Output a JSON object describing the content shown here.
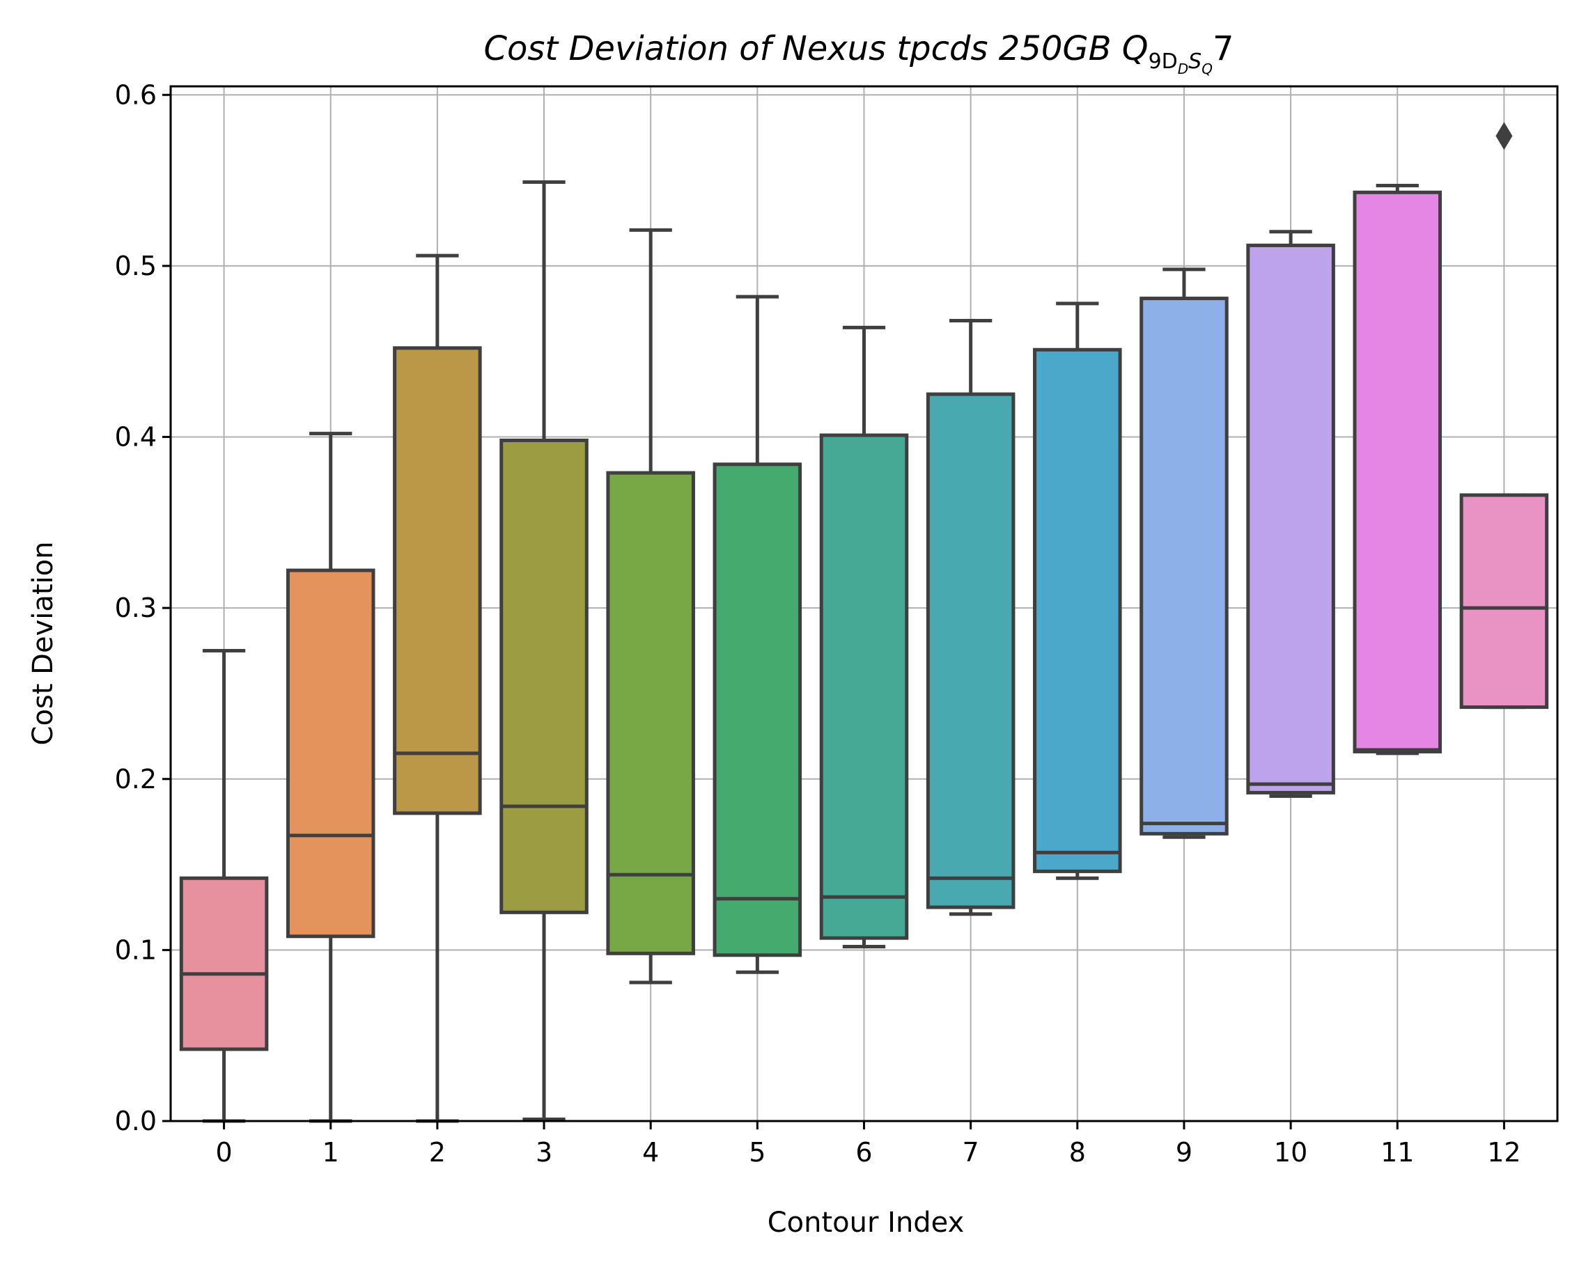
{
  "chart_data": {
    "type": "box",
    "title": {
      "main": "Cost Deviation of Nexus tpcds  250GB  Q",
      "sub1": "9D",
      "sub2": "D",
      "sub3": "S",
      "sub4": "Q",
      "tail": "7"
    },
    "xlabel": "Contour Index",
    "ylabel": "Cost Deviation",
    "ylim": [
      0,
      0.605
    ],
    "yticks": [
      0.0,
      0.1,
      0.2,
      0.3,
      0.4,
      0.5,
      0.6
    ],
    "ytick_labels": [
      "0.0",
      "0.1",
      "0.2",
      "0.3",
      "0.4",
      "0.5",
      "0.6"
    ],
    "grid": true,
    "categories": [
      "0",
      "1",
      "2",
      "3",
      "4",
      "5",
      "6",
      "7",
      "8",
      "9",
      "10",
      "11",
      "12"
    ],
    "boxes": [
      {
        "category": "0",
        "whislo": 0.0,
        "q1": 0.042,
        "med": 0.086,
        "q3": 0.142,
        "whishi": 0.275,
        "fliers": [],
        "color": "#e8919e"
      },
      {
        "category": "1",
        "whislo": 0.0,
        "q1": 0.108,
        "med": 0.167,
        "q3": 0.322,
        "whishi": 0.402,
        "fliers": [],
        "color": "#e4935d"
      },
      {
        "category": "2",
        "whislo": 0.0,
        "q1": 0.18,
        "med": 0.215,
        "q3": 0.452,
        "whishi": 0.506,
        "fliers": [],
        "color": "#bb9847"
      },
      {
        "category": "3",
        "whislo": 0.001,
        "q1": 0.122,
        "med": 0.184,
        "q3": 0.398,
        "whishi": 0.549,
        "fliers": [],
        "color": "#9c9c43"
      },
      {
        "category": "4",
        "whislo": 0.081,
        "q1": 0.098,
        "med": 0.144,
        "q3": 0.379,
        "whishi": 0.521,
        "fliers": [],
        "color": "#78a746"
      },
      {
        "category": "5",
        "whislo": 0.087,
        "q1": 0.097,
        "med": 0.13,
        "q3": 0.384,
        "whishi": 0.482,
        "fliers": [],
        "color": "#44aa6e"
      },
      {
        "category": "6",
        "whislo": 0.102,
        "q1": 0.107,
        "med": 0.131,
        "q3": 0.401,
        "whishi": 0.464,
        "fliers": [],
        "color": "#46a996"
      },
      {
        "category": "7",
        "whislo": 0.121,
        "q1": 0.125,
        "med": 0.142,
        "q3": 0.425,
        "whishi": 0.468,
        "fliers": [],
        "color": "#48aab0"
      },
      {
        "category": "8",
        "whislo": 0.142,
        "q1": 0.146,
        "med": 0.157,
        "q3": 0.451,
        "whishi": 0.478,
        "fliers": [],
        "color": "#4ba8ca"
      },
      {
        "category": "9",
        "whislo": 0.166,
        "q1": 0.168,
        "med": 0.174,
        "q3": 0.481,
        "whishi": 0.498,
        "fliers": [],
        "color": "#8eb0e8"
      },
      {
        "category": "10",
        "whislo": 0.19,
        "q1": 0.192,
        "med": 0.197,
        "q3": 0.512,
        "whishi": 0.52,
        "fliers": [],
        "color": "#bca3eb"
      },
      {
        "category": "11",
        "whislo": 0.215,
        "q1": 0.216,
        "med": 0.217,
        "q3": 0.543,
        "whishi": 0.547,
        "fliers": [],
        "color": "#e586e5"
      },
      {
        "category": "12",
        "whislo": 0.242,
        "q1": 0.242,
        "med": 0.3,
        "q3": 0.366,
        "whishi": 0.366,
        "fliers": [
          0.576
        ],
        "color": "#e993c5"
      }
    ]
  }
}
